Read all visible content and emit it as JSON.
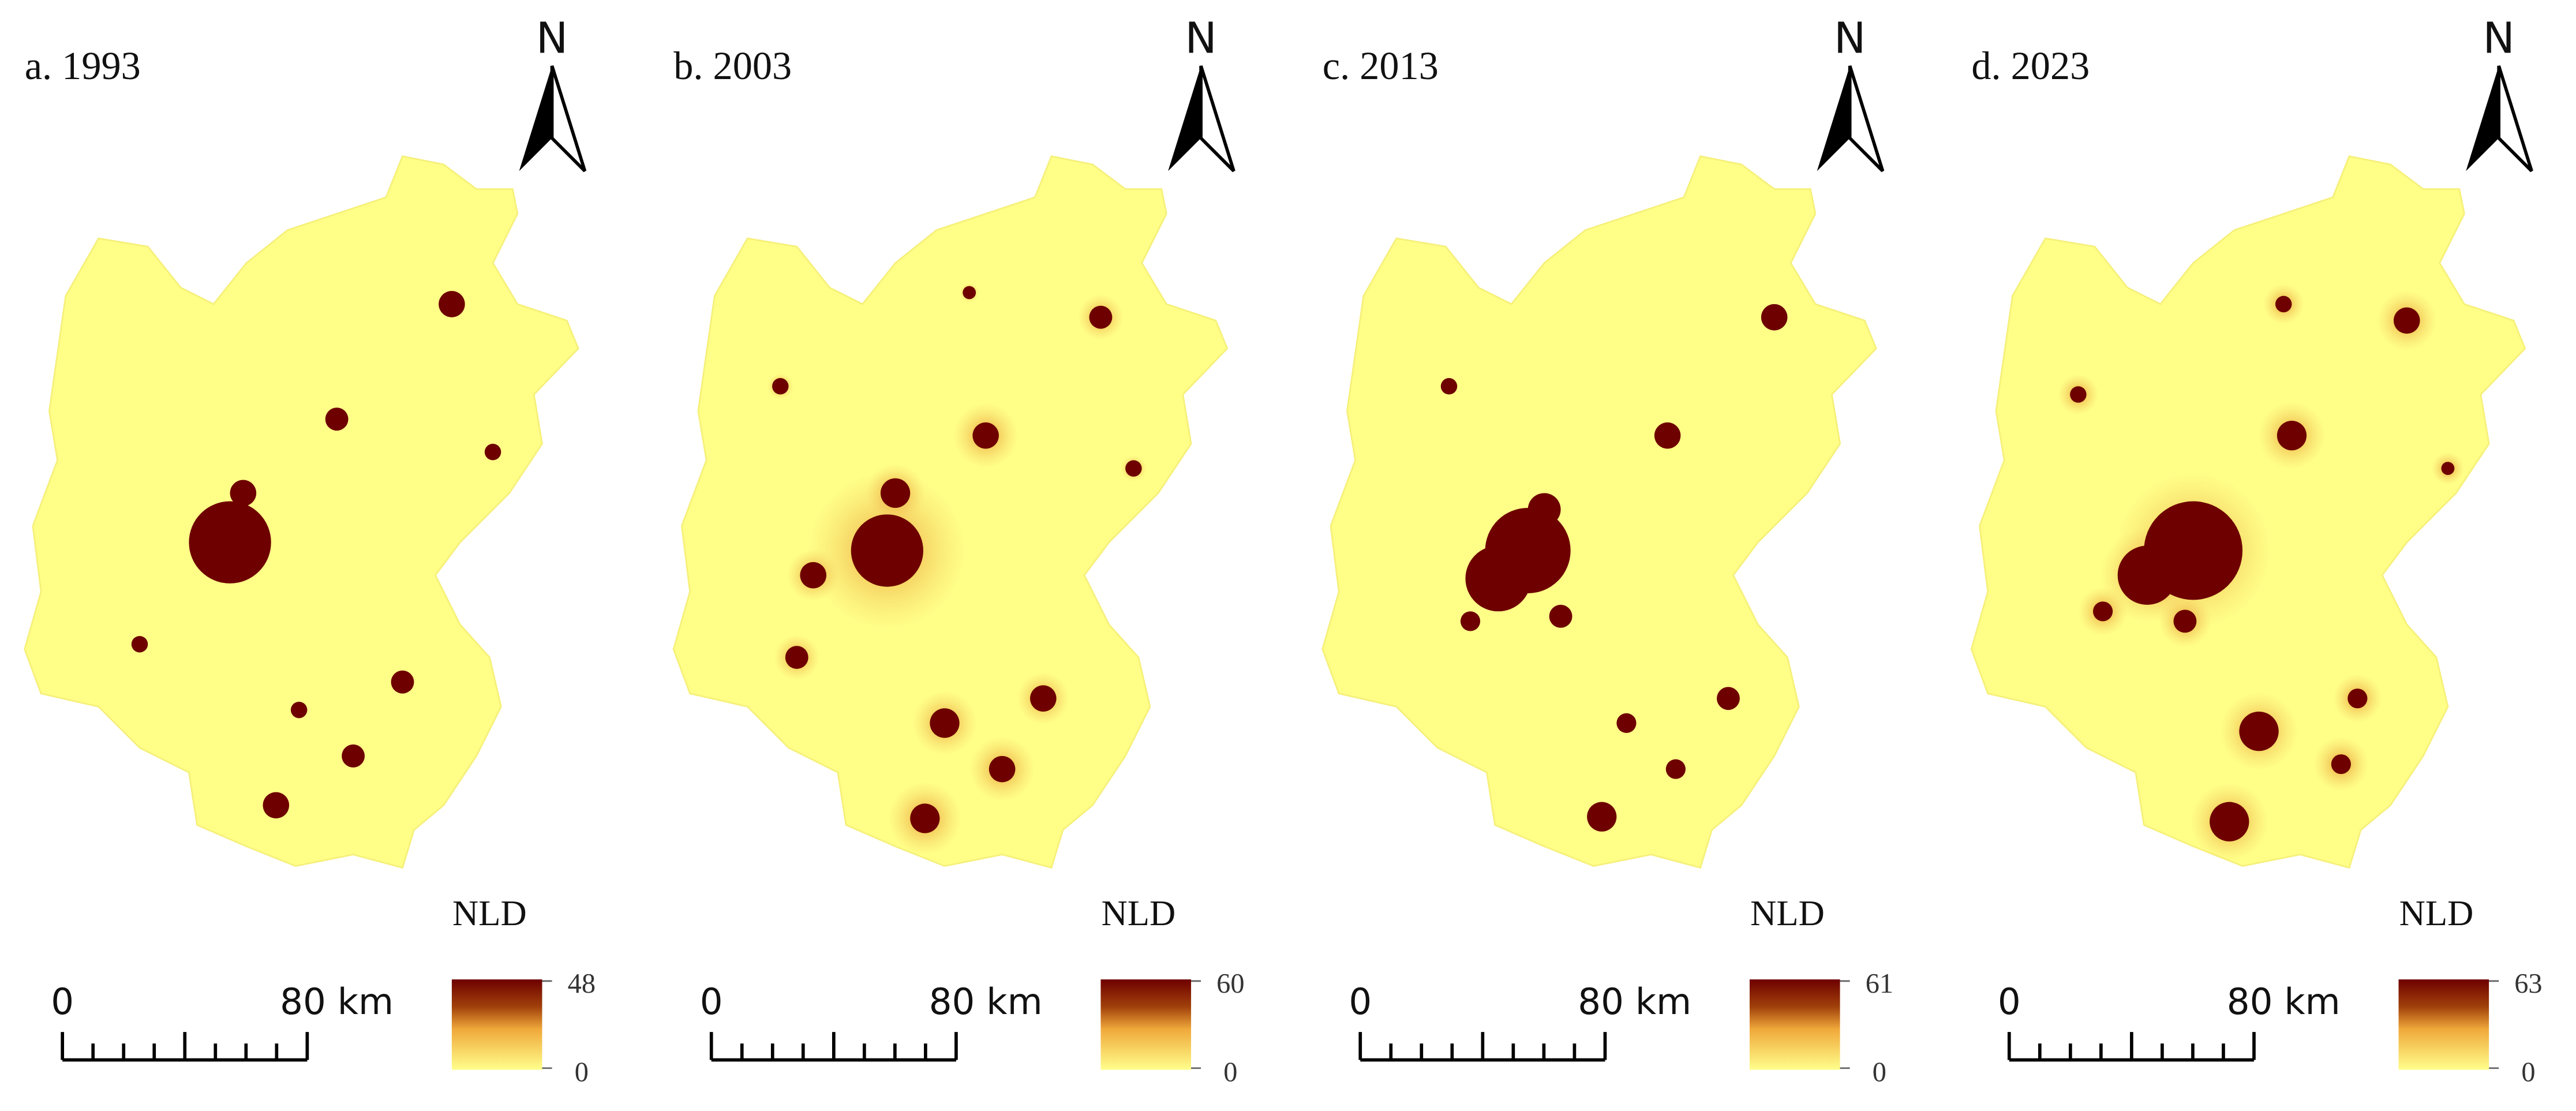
{
  "panels": [
    {
      "title": "a. 1993",
      "north": "N",
      "legend_title": "NLD",
      "legend_max": "48",
      "legend_min": "0",
      "scale_start": "0",
      "scale_end": "80 km"
    },
    {
      "title": "b. 2003",
      "north": "N",
      "legend_title": "NLD",
      "legend_max": "60",
      "legend_min": "0",
      "scale_start": "0",
      "scale_end": "80 km"
    },
    {
      "title": "c. 2013",
      "north": "N",
      "legend_title": "NLD",
      "legend_max": "61",
      "legend_min": "0",
      "scale_start": "0",
      "scale_end": "80 km"
    },
    {
      "title": "d. 2023",
      "north": "N",
      "legend_title": "NLD",
      "legend_max": "63",
      "legend_min": "0",
      "scale_start": "0",
      "scale_end": "80 km"
    }
  ]
}
